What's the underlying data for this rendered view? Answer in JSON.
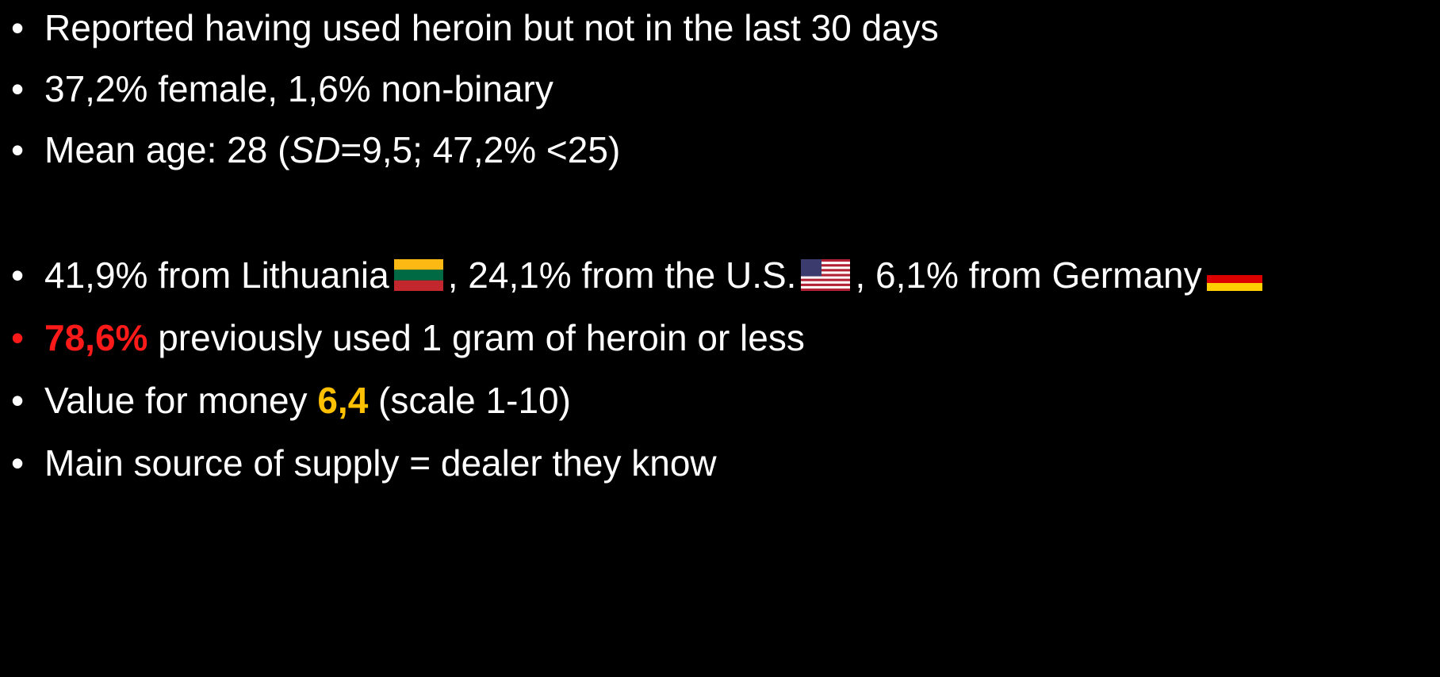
{
  "bullets": [
    {
      "text": "Reported having used heroin but not in the last 30 days"
    },
    {
      "text": "37,2% female, 1,6% non-binary"
    },
    {
      "parts": [
        "Mean age: 28 (",
        "SD",
        "=9,5; 47,2% <25)"
      ]
    },
    {
      "parts": [
        "41,9% from Lithuania",
        ", 24,1% from the U.S.",
        ", 6,1% from Germany"
      ]
    },
    {
      "highlight": "78,6%",
      "text": " previously used 1 gram of heroin or less"
    },
    {
      "parts": [
        "Value for money ",
        "6,4",
        " (scale 1-10)"
      ]
    },
    {
      "text": "Main source of supply = dealer they know"
    }
  ]
}
